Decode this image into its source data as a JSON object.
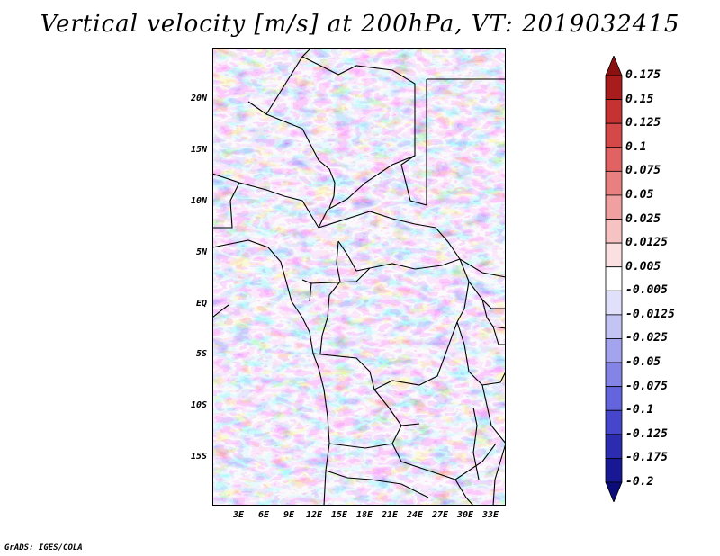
{
  "title": "Vertical velocity [m/s] at 200hPa, VT: 2019032415",
  "footer": "GrADS: IGES/COLA",
  "latitude_labels": [
    "20N",
    "15N",
    "10N",
    "5N",
    "EQ",
    "5S",
    "10S",
    "15S"
  ],
  "longitude_labels": [
    "3E",
    "6E",
    "9E",
    "12E",
    "15E",
    "18E",
    "21E",
    "24E",
    "27E",
    "30E",
    "33E"
  ],
  "colorbar": {
    "labels": [
      "0.175",
      "0.15",
      "0.125",
      "0.1",
      "0.075",
      "0.05",
      "0.025",
      "0.0125",
      "0.005",
      "-0.005",
      "-0.0125",
      "-0.025",
      "-0.05",
      "-0.075",
      "-0.1",
      "-0.125",
      "-0.175",
      "-0.2"
    ],
    "colors": [
      "#8b1010",
      "#a81c1c",
      "#c43232",
      "#d54848",
      "#e06262",
      "#e98080",
      "#f0a0a0",
      "#f6c2c2",
      "#fae0e0",
      "#ffffff",
      "#e0e0fa",
      "#c4c4f4",
      "#a4a4ee",
      "#8484e6",
      "#6464dc",
      "#4646cc",
      "#2c2cb0",
      "#181894",
      "#0c0c78"
    ]
  },
  "field": {
    "description_colors": {
      "positive": "#e05a5a",
      "negative": "#5a5ae0"
    }
  }
}
